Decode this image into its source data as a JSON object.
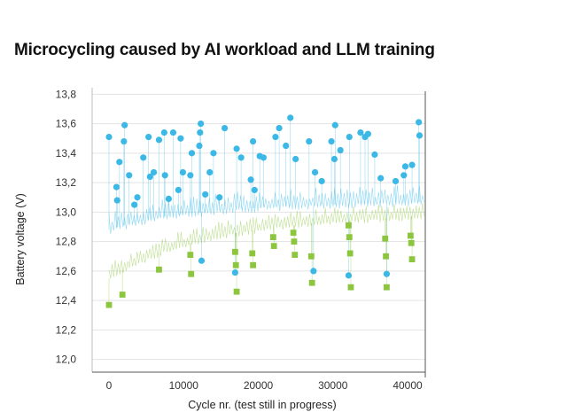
{
  "chart_data": {
    "type": "scatter",
    "title": "Microcycling caused by AI workload and LLM training",
    "xlabel": "Cycle nr. (test still in progress)",
    "ylabel": "Battery voltage (V)",
    "xlim": [
      -2000,
      42000
    ],
    "ylim": [
      11.95,
      13.82
    ],
    "xticks": [
      0,
      10000,
      20000,
      30000,
      40000
    ],
    "xtick_labels": [
      "0",
      "10000",
      "20000",
      "30000",
      "40000"
    ],
    "yticks": [
      12.0,
      12.2,
      12.4,
      12.6,
      12.8,
      13.0,
      13.2,
      13.4,
      13.6,
      13.8
    ],
    "ytick_labels": [
      "12,0",
      "12,2",
      "12,4",
      "12,6",
      "12,8",
      "13,0",
      "13,2",
      "13,4",
      "13,6",
      "13,8"
    ],
    "grid": true,
    "colors": {
      "charge": "#3bb8e6",
      "discharge": "#8cc63f",
      "grid": "#e3e3e3"
    },
    "series": [
      {
        "marker": "circle",
        "color": "#3bb8e6",
        "x": [
          0,
          1000,
          1100,
          1400,
          2000,
          2100,
          2700,
          3400,
          3800,
          4600,
          5300,
          5500,
          6000,
          6700,
          7400,
          7500,
          8000,
          8600,
          9300,
          9600,
          9900,
          10900,
          11100,
          12100,
          12200,
          12300,
          12400,
          12900,
          13500,
          14000,
          14800,
          15500,
          16900,
          17100,
          17700,
          19000,
          19300,
          19500,
          20200,
          20700,
          22300,
          22800,
          23700,
          24300,
          25000,
          26800,
          27400,
          27600,
          28500,
          29800,
          30200,
          30300,
          31000,
          32100,
          32200,
          33700,
          34300,
          34700,
          35600,
          36400,
          37200,
          38400,
          39500,
          39700,
          40600,
          41500,
          41600
        ],
        "y": [
          13.51,
          13.17,
          13.08,
          13.34,
          13.48,
          13.59,
          13.25,
          13.05,
          13.1,
          13.37,
          13.51,
          13.24,
          13.27,
          13.49,
          13.54,
          13.25,
          13.09,
          13.54,
          13.15,
          13.5,
          13.27,
          13.25,
          13.4,
          13.45,
          13.54,
          13.6,
          12.67,
          13.12,
          13.27,
          13.4,
          13.1,
          13.57,
          12.59,
          13.43,
          13.37,
          13.22,
          13.48,
          13.15,
          13.38,
          13.37,
          13.51,
          13.57,
          13.45,
          13.64,
          13.36,
          13.48,
          12.6,
          13.27,
          13.21,
          13.48,
          13.36,
          13.59,
          13.42,
          12.57,
          13.51,
          13.54,
          13.51,
          13.53,
          13.39,
          13.23,
          12.58,
          13.21,
          13.25,
          13.31,
          13.32,
          13.61,
          13.52
        ]
      },
      {
        "marker": "square",
        "color": "#8cc63f",
        "x": [
          0,
          1800,
          6700,
          10900,
          11000,
          16900,
          17000,
          17100,
          19200,
          19300,
          22000,
          22100,
          24700,
          24800,
          24900,
          27100,
          27200,
          32100,
          32200,
          32300,
          32400,
          37000,
          37100,
          37200,
          40400,
          40500,
          40600
        ],
        "y": [
          12.37,
          12.44,
          12.61,
          12.71,
          12.58,
          12.73,
          12.64,
          12.46,
          12.72,
          12.64,
          12.83,
          12.77,
          12.86,
          12.8,
          12.71,
          12.7,
          12.52,
          12.91,
          12.83,
          12.72,
          12.49,
          12.82,
          12.7,
          12.49,
          12.84,
          12.79,
          12.68
        ]
      }
    ]
  }
}
